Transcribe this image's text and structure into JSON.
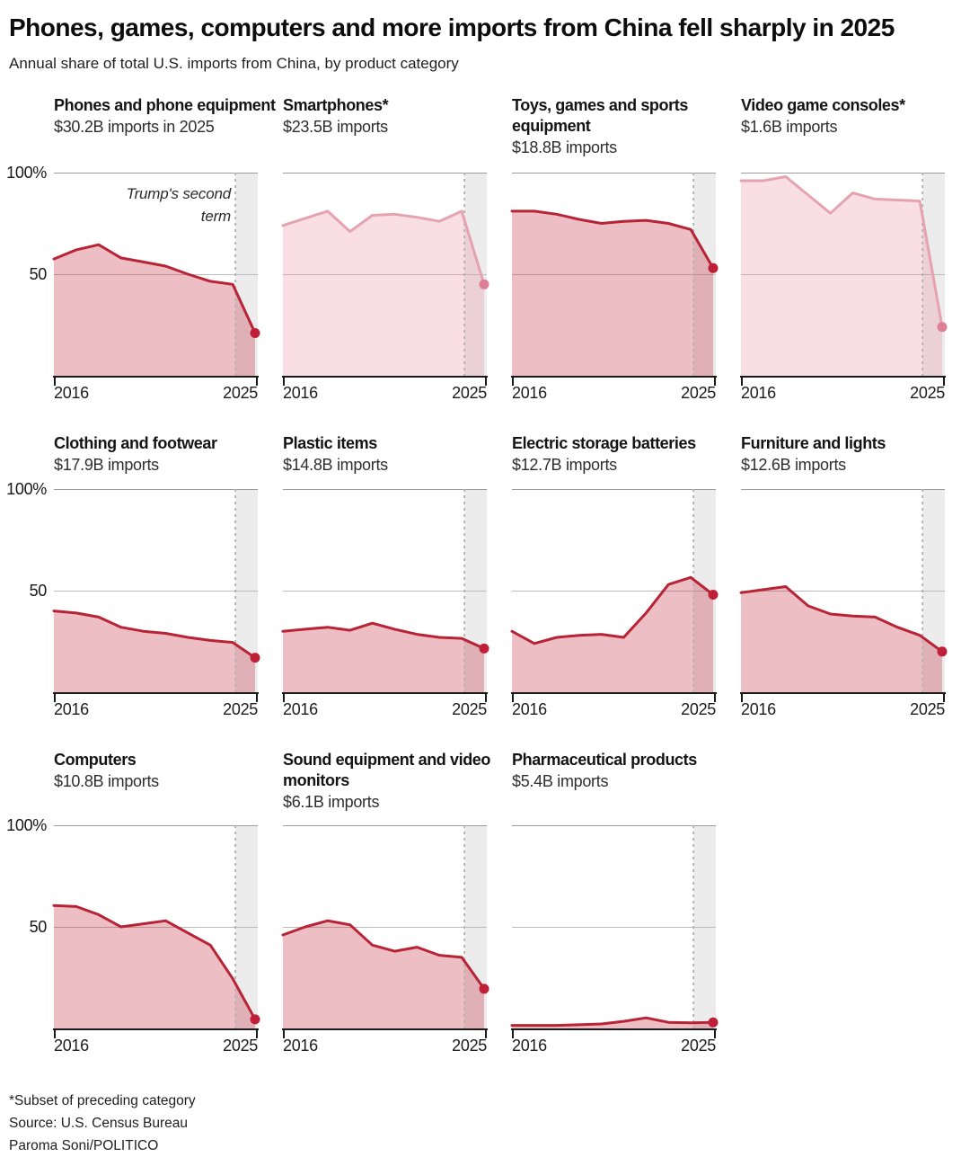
{
  "title": "Phones, games, computers and more imports from China fell sharply in 2025",
  "subtitle": "Annual share of total U.S. imports from China, by product category",
  "axis": {
    "y_top_label": "100%",
    "y_mid_label": "50",
    "x_start": "2016",
    "x_end": "2025"
  },
  "annotation": "Trump's second term",
  "footnotes": [
    "*Subset of preceding category",
    "Source: U.S. Census Bureau",
    "Paroma Soni/POLITICO"
  ],
  "colors": {
    "dark_line": "#b82336",
    "dark_dot": "#c01f38",
    "dark_fill": "rgba(190,20,40,0.28)",
    "light_line": "#e5a3b1",
    "light_dot": "#dc7e94",
    "light_fill": "rgba(231,124,143,0.25)",
    "band": "#ececec",
    "grid_top": "#9c9c9c",
    "grid_mid": "#bcbcbc",
    "dashed": "#b5b5b5",
    "axis": "#1a1a1a"
  },
  "chart_data": {
    "type": "area",
    "x": [
      2016,
      2017,
      2018,
      2019,
      2020,
      2021,
      2022,
      2023,
      2024,
      2025
    ],
    "ylim": [
      0,
      100
    ],
    "gridlines_pct": [
      100,
      50
    ],
    "event_line": {
      "x": 2025,
      "label": "Trump's second term",
      "band_after": true
    },
    "rows": [
      [
        0,
        1,
        2,
        3
      ],
      [
        4,
        5,
        6,
        7
      ],
      [
        8,
        9,
        10
      ]
    ],
    "charts": [
      {
        "title": "Phones and phone equipment",
        "value_label": "$30.2B imports in 2025",
        "style": "dark",
        "values": [
          57.5,
          62,
          64.5,
          58,
          56,
          54,
          50,
          46.5,
          45,
          21
        ]
      },
      {
        "title": "Smartphones*",
        "value_label": "$23.5B imports",
        "style": "light",
        "values": [
          74,
          77.5,
          81,
          71,
          79,
          79.5,
          78,
          76,
          81,
          45
        ]
      },
      {
        "title": "Toys, games and sports equipment",
        "value_label": "$18.8B imports",
        "style": "dark",
        "values": [
          81,
          81,
          79.5,
          77,
          75,
          76,
          76.5,
          75,
          72,
          53
        ]
      },
      {
        "title": "Video game consoles*",
        "value_label": "$1.6B imports",
        "style": "light",
        "values": [
          96,
          96,
          98,
          89,
          80,
          90,
          87,
          86.5,
          86,
          24
        ]
      },
      {
        "title": "Clothing and footwear",
        "value_label": "$17.9B imports",
        "style": "dark",
        "values": [
          40,
          39,
          37,
          32,
          30,
          29,
          27,
          25.5,
          24.5,
          17
        ]
      },
      {
        "title": "Plastic items",
        "value_label": "$14.8B imports",
        "style": "dark",
        "values": [
          30,
          31,
          32,
          30.5,
          34,
          31,
          28.5,
          27,
          26.5,
          21.5
        ]
      },
      {
        "title": "Electric storage batteries",
        "value_label": "$12.7B imports",
        "style": "dark",
        "values": [
          30,
          24,
          27,
          28,
          28.5,
          27,
          39,
          53,
          56.5,
          48
        ]
      },
      {
        "title": "Furniture and lights",
        "value_label": "$12.6B imports",
        "style": "dark",
        "values": [
          49,
          50.5,
          52,
          42.5,
          38.5,
          37.5,
          37,
          32,
          28,
          20
        ]
      },
      {
        "title": "Computers",
        "value_label": "$10.8B imports",
        "style": "dark",
        "values": [
          60.5,
          60,
          56,
          50,
          51.5,
          53,
          47,
          41,
          24.5,
          4.5
        ]
      },
      {
        "title": "Sound equipment and video monitors",
        "value_label": "$6.1B imports",
        "style": "dark",
        "values": [
          46,
          50,
          53,
          51,
          41,
          38,
          40,
          36,
          35,
          19.5
        ]
      },
      {
        "title": "Pharmaceutical products",
        "value_label": "$5.4B imports",
        "style": "dark",
        "values": [
          1.5,
          1.5,
          1.5,
          1.8,
          2.2,
          3.5,
          5.2,
          3,
          2.8,
          3
        ]
      }
    ]
  }
}
